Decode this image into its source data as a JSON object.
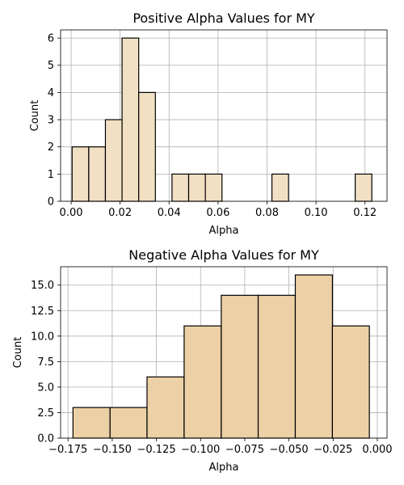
{
  "chart_data": [
    {
      "type": "bar",
      "title": "Positive Alpha Values for MY",
      "xlabel": "Alpha",
      "ylabel": "Count",
      "xlim": [
        -0.0043,
        0.129
      ],
      "ylim": [
        0,
        6.3
      ],
      "xticks": [
        0.0,
        0.02,
        0.04,
        0.06,
        0.08,
        0.1,
        0.12
      ],
      "xtick_labels": [
        "0.00",
        "0.02",
        "0.04",
        "0.06",
        "0.08",
        "0.10",
        "0.12"
      ],
      "yticks": [
        0,
        1,
        2,
        3,
        4,
        5,
        6
      ],
      "ytick_labels": [
        "0",
        "1",
        "2",
        "3",
        "4",
        "5",
        "6"
      ],
      "grid": true,
      "bar_color": "#f2e0c4",
      "edge_color": "#000000",
      "bins": [
        {
          "x0": 0.0004,
          "x1": 0.0072,
          "count": 2
        },
        {
          "x0": 0.0072,
          "x1": 0.014,
          "count": 2
        },
        {
          "x0": 0.014,
          "x1": 0.0208,
          "count": 3
        },
        {
          "x0": 0.0208,
          "x1": 0.0276,
          "count": 6
        },
        {
          "x0": 0.0276,
          "x1": 0.0344,
          "count": 4
        },
        {
          "x0": 0.0412,
          "x1": 0.048,
          "count": 1
        },
        {
          "x0": 0.048,
          "x1": 0.0548,
          "count": 1
        },
        {
          "x0": 0.0548,
          "x1": 0.0616,
          "count": 1
        },
        {
          "x0": 0.082,
          "x1": 0.0888,
          "count": 1
        },
        {
          "x0": 0.116,
          "x1": 0.1228,
          "count": 1
        }
      ]
    },
    {
      "type": "bar",
      "title": "Negative Alpha Values for MY",
      "xlabel": "Alpha",
      "ylabel": "Count",
      "xlim": [
        -0.1792,
        0.0055
      ],
      "ylim": [
        0,
        16.8
      ],
      "xticks": [
        -0.175,
        -0.15,
        -0.125,
        -0.1,
        -0.075,
        -0.05,
        -0.025,
        0.0
      ],
      "xtick_labels": [
        "−0.175",
        "−0.150",
        "−0.125",
        "−0.100",
        "−0.075",
        "−0.050",
        "−0.025",
        "0.000"
      ],
      "yticks": [
        0,
        2.5,
        5,
        7.5,
        10,
        12.5,
        15
      ],
      "ytick_labels": [
        "0.0",
        "2.5",
        "5.0",
        "7.5",
        "10.0",
        "12.5",
        "15.0"
      ],
      "grid": true,
      "bar_color": "#ecd0a6",
      "edge_color": "#000000",
      "bins": [
        {
          "x0": -0.1722,
          "x1": -0.1512,
          "count": 3
        },
        {
          "x0": -0.1512,
          "x1": -0.1303,
          "count": 3
        },
        {
          "x0": -0.1303,
          "x1": -0.1093,
          "count": 6
        },
        {
          "x0": -0.1093,
          "x1": -0.0883,
          "count": 11
        },
        {
          "x0": -0.0883,
          "x1": -0.0674,
          "count": 14
        },
        {
          "x0": -0.0674,
          "x1": -0.0464,
          "count": 14
        },
        {
          "x0": -0.0464,
          "x1": -0.0254,
          "count": 16
        },
        {
          "x0": -0.0254,
          "x1": -0.0045,
          "count": 11
        }
      ]
    }
  ]
}
